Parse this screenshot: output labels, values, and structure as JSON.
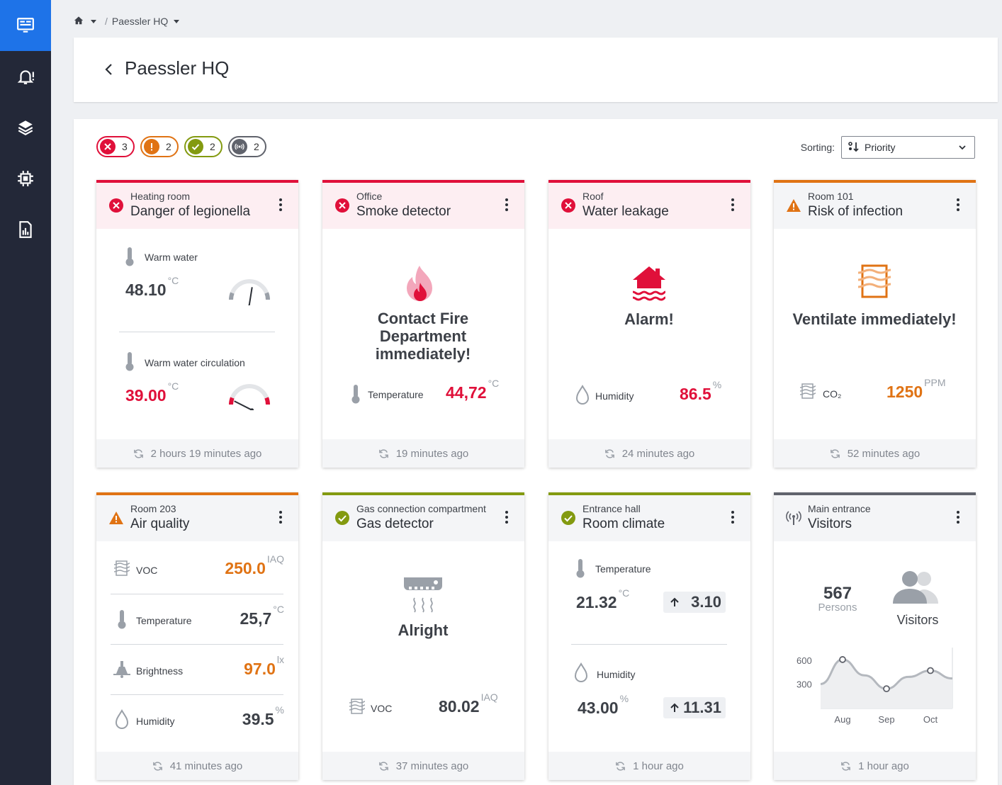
{
  "app": {
    "nav": [
      {
        "name": "dashboard-icon",
        "active": true
      },
      {
        "name": "alarm-bell-icon",
        "active": false
      },
      {
        "name": "layers-icon",
        "active": false
      },
      {
        "name": "chip-icon",
        "active": false
      },
      {
        "name": "report-icon",
        "active": false
      }
    ]
  },
  "breadcrumb": {
    "separator": "/",
    "current": "Paessler HQ"
  },
  "header": {
    "title": "Paessler HQ"
  },
  "status_chips": [
    {
      "status": "error",
      "count": "3"
    },
    {
      "status": "warning",
      "count": "2"
    },
    {
      "status": "ok",
      "count": "2"
    },
    {
      "status": "unknown",
      "count": "2"
    }
  ],
  "sorting": {
    "label": "Sorting:",
    "value": "Priority"
  },
  "colors": {
    "error": "#e0103a",
    "warning": "#e07314",
    "ok": "#839a10",
    "unknown": "#60636c",
    "accent": "#1e73e8"
  },
  "cards": [
    {
      "status": "error",
      "location": "Heating room",
      "title": "Danger of legionella",
      "metrics": [
        {
          "label": "Warm water",
          "value": "48.10",
          "unit": "°C",
          "gauge_level": 0.55
        },
        {
          "label": "Warm water circulation",
          "value": "39.00",
          "unit": "°C",
          "gauge_level": 0.15
        }
      ],
      "updated": "2 hours 19 minutes ago"
    },
    {
      "status": "error",
      "location": "Office",
      "title": "Smoke detector",
      "icon": "fire-icon",
      "message": "Contact Fire Department immediately!",
      "metric": {
        "label": "Temperature",
        "value": "44,72",
        "unit": "°C"
      },
      "updated": "19 minutes ago"
    },
    {
      "status": "error",
      "location": "Roof",
      "title": "Water leakage",
      "icon": "flooded-house-icon",
      "message": "Alarm!",
      "metric": {
        "label": "Humidity",
        "value": "86.5",
        "unit": "%"
      },
      "updated": "24 minutes ago"
    },
    {
      "status": "warning",
      "location": "Room 101",
      "title": "Risk of infection",
      "icon": "air-quality-icon",
      "message": "Ventilate immediately!",
      "metric": {
        "label": "CO₂",
        "value": "1250",
        "unit": "PPM"
      },
      "updated": "52 minutes ago"
    },
    {
      "status": "warning",
      "location": "Room 203",
      "title": "Air quality",
      "metrics": [
        {
          "label": "VOC",
          "value": "250.0",
          "unit": "IAQ",
          "icon": "air-quality-icon"
        },
        {
          "label": "Temperature",
          "value": "25,7",
          "unit": "°C",
          "icon": "thermometer-icon"
        },
        {
          "label": "Brightness",
          "value": "97.0",
          "unit": "lx",
          "icon": "lamp-icon"
        },
        {
          "label": "Humidity",
          "value": "39.5",
          "unit": "%",
          "icon": "drop-icon"
        }
      ],
      "updated": "41 minutes ago"
    },
    {
      "status": "ok",
      "location": "Gas connection compartment",
      "title": "Gas detector",
      "icon": "gas-detector-icon",
      "message": "Alright",
      "metric": {
        "label": "VOC",
        "value": "80.02",
        "unit": "IAQ"
      },
      "updated": "37 minutes ago"
    },
    {
      "status": "ok",
      "location": "Entrance hall",
      "title": "Room climate",
      "metrics": [
        {
          "label": "Temperature",
          "value": "21.32",
          "unit": "°C",
          "delta": "3.10"
        },
        {
          "label": "Humidity",
          "value": "43.00",
          "unit": "%",
          "delta": "11.31"
        }
      ],
      "updated": "1 hour ago"
    },
    {
      "status": "unknown",
      "location": "Main entrance",
      "title": "Visitors",
      "count": "567",
      "count_label": "Persons",
      "icon_label": "Visitors",
      "updated": "1 hour ago"
    }
  ],
  "chart_data": {
    "type": "line",
    "categories": [
      "Aug",
      "Sep",
      "Oct"
    ],
    "yticks": [
      "600",
      "300"
    ],
    "ylim": [
      0,
      700
    ],
    "points": [
      {
        "x": "Jul",
        "y": 310
      },
      {
        "x": "Aug",
        "y": 620
      },
      {
        "x": "Aug-Sep",
        "y": 420
      },
      {
        "x": "Sep",
        "y": 250
      },
      {
        "x": "Sep-Oct",
        "y": 400
      },
      {
        "x": "Oct",
        "y": 480
      },
      {
        "x": "Nov",
        "y": 380
      }
    ],
    "markers": [
      {
        "x": "Aug",
        "y": 620
      },
      {
        "x": "Sep",
        "y": 250
      },
      {
        "x": "Oct",
        "y": 480
      }
    ],
    "grid": false,
    "legend": "none"
  }
}
